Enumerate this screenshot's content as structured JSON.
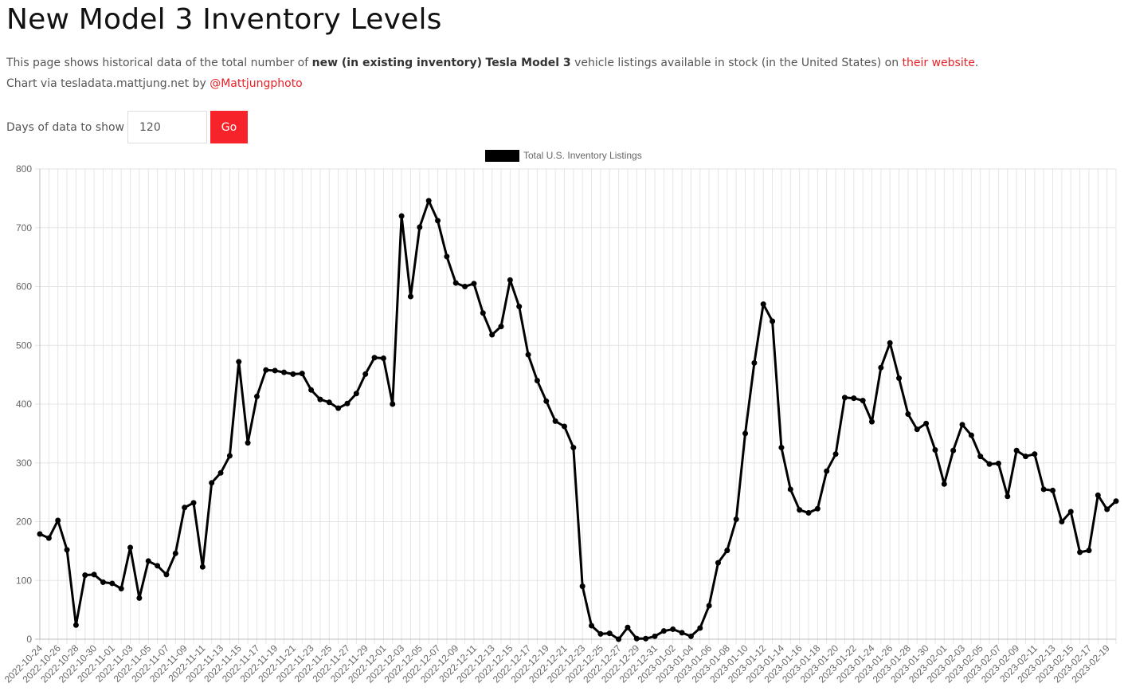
{
  "page": {
    "title": "New Model 3 Inventory Levels",
    "desc_prefix": "This page shows historical data of the total number of ",
    "desc_bold1": "new (in existing inventory)",
    "desc_space": " ",
    "desc_bold2": "Tesla Model 3",
    "desc_middle": " vehicle listings available in stock (in the United States) on ",
    "desc_link": "their website",
    "desc_suffix": ".",
    "credit_prefix": "Chart via tesladata.mattjung.net by ",
    "credit_link": "@Mattjungphoto"
  },
  "form": {
    "days_label": "Days of data to show",
    "days_value": "120",
    "go_label": "Go"
  },
  "colors": {
    "accent": "#f6232a",
    "link": "#e82127",
    "line": "#000000",
    "grid": "#e5e5e5"
  },
  "chart_data": {
    "type": "line",
    "title": "",
    "xlabel": "",
    "ylabel": "",
    "ylim": [
      0,
      800
    ],
    "yticks": [
      0,
      100,
      200,
      300,
      400,
      500,
      600,
      700,
      800
    ],
    "grid": true,
    "legend_position": "top-center",
    "x": [
      "2022-10-24",
      "2022-10-25",
      "2022-10-26",
      "2022-10-27",
      "2022-10-28",
      "2022-10-29",
      "2022-10-30",
      "2022-10-31",
      "2022-11-01",
      "2022-11-02",
      "2022-11-03",
      "2022-11-04",
      "2022-11-05",
      "2022-11-06",
      "2022-11-07",
      "2022-11-08",
      "2022-11-09",
      "2022-11-10",
      "2022-11-11",
      "2022-11-12",
      "2022-11-13",
      "2022-11-14",
      "2022-11-15",
      "2022-11-16",
      "2022-11-17",
      "2022-11-18",
      "2022-11-19",
      "2022-11-20",
      "2022-11-21",
      "2022-11-22",
      "2022-11-23",
      "2022-11-24",
      "2022-11-25",
      "2022-11-26",
      "2022-11-27",
      "2022-11-28",
      "2022-11-29",
      "2022-11-30",
      "2022-12-01",
      "2022-12-02",
      "2022-12-03",
      "2022-12-04",
      "2022-12-05",
      "2022-12-06",
      "2022-12-07",
      "2022-12-08",
      "2022-12-09",
      "2022-12-10",
      "2022-12-11",
      "2022-12-12",
      "2022-12-13",
      "2022-12-14",
      "2022-12-15",
      "2022-12-16",
      "2022-12-17",
      "2022-12-18",
      "2022-12-19",
      "2022-12-20",
      "2022-12-21",
      "2022-12-22",
      "2022-12-23",
      "2022-12-24",
      "2022-12-25",
      "2022-12-26",
      "2022-12-27",
      "2022-12-28",
      "2022-12-29",
      "2022-12-30",
      "2022-12-31",
      "2023-01-01",
      "2023-01-02",
      "2023-01-03",
      "2023-01-04",
      "2023-01-05",
      "2023-01-06",
      "2023-01-07",
      "2023-01-08",
      "2023-01-09",
      "2023-01-10",
      "2023-01-11",
      "2023-01-12",
      "2023-01-13",
      "2023-01-14",
      "2023-01-15",
      "2023-01-16",
      "2023-01-17",
      "2023-01-18",
      "2023-01-19",
      "2023-01-20",
      "2023-01-21",
      "2023-01-22",
      "2023-01-23",
      "2023-01-24",
      "2023-01-25",
      "2023-01-26",
      "2023-01-27",
      "2023-01-28",
      "2023-01-29",
      "2023-01-30",
      "2023-01-31",
      "2023-02-01",
      "2023-02-02",
      "2023-02-03",
      "2023-02-04",
      "2023-02-05",
      "2023-02-06",
      "2023-02-07",
      "2023-02-08",
      "2023-02-09",
      "2023-02-10",
      "2023-02-11",
      "2023-02-12",
      "2023-02-13",
      "2023-02-14",
      "2023-02-15",
      "2023-02-16",
      "2023-02-17",
      "2023-02-18",
      "2023-02-19",
      "2023-02-20"
    ],
    "series": [
      {
        "name": "Total U.S. Inventory Listings",
        "color": "#000000",
        "values": [
          179,
          172,
          202,
          152,
          24,
          109,
          110,
          97,
          95,
          86,
          156,
          70,
          133,
          125,
          110,
          146,
          224,
          232,
          123,
          266,
          283,
          312,
          472,
          334,
          413,
          458,
          457,
          454,
          451,
          452,
          424,
          408,
          403,
          393,
          401,
          418,
          451,
          479,
          478,
          400,
          720,
          583,
          701,
          746,
          712,
          651,
          606,
          600,
          605,
          555,
          518,
          532,
          611,
          566,
          484,
          440,
          405,
          371,
          362,
          326,
          90,
          23,
          9,
          10,
          0,
          20,
          1,
          1,
          5,
          14,
          17,
          11,
          5,
          19,
          57,
          130,
          151,
          204,
          350,
          470,
          570,
          541,
          326,
          255,
          220,
          215,
          222,
          286,
          315,
          411,
          410,
          406,
          370,
          462,
          504,
          444,
          383,
          357,
          367,
          322,
          264,
          321,
          365,
          347,
          311,
          298,
          299,
          243,
          321,
          311,
          315,
          255,
          253,
          200,
          217,
          148,
          151,
          245,
          221,
          235
        ]
      }
    ]
  }
}
